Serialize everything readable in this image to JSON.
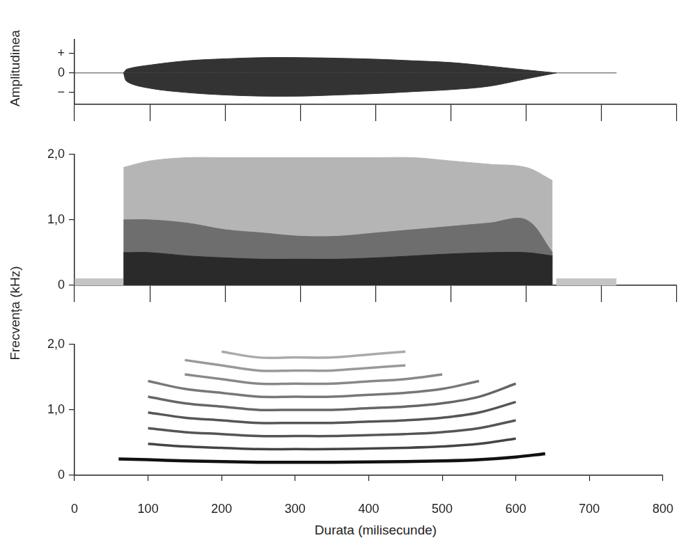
{
  "chart_data": [
    {
      "type": "area",
      "ylabel": "Amplitudinea",
      "xlim": [
        0,
        800
      ],
      "xticks": [
        0,
        100,
        200,
        300,
        400,
        500,
        600,
        700,
        800
      ],
      "ylim": [
        -1.6,
        1.7
      ],
      "yticks": [
        {
          "value": -1,
          "label": "−"
        },
        0,
        {
          "value": 1,
          "label": "+"
        }
      ],
      "tick_labels": "y",
      "grid": false,
      "series": [
        {
          "color": "#333333",
          "x": [
            65,
            70,
            100,
            150,
            200,
            250,
            300,
            350,
            400,
            450,
            500,
            550,
            600,
            640
          ],
          "values": [
            0,
            0.2,
            0.4,
            0.62,
            0.72,
            0.78,
            0.78,
            0.75,
            0.7,
            0.62,
            0.53,
            0.35,
            0.15,
            0
          ]
        },
        {
          "color": "#333333",
          "x": [
            65,
            70,
            100,
            150,
            200,
            250,
            300,
            350,
            400,
            450,
            500,
            550,
            600,
            640
          ],
          "values": [
            0,
            -0.45,
            -0.78,
            -1.0,
            -1.12,
            -1.18,
            -1.18,
            -1.12,
            -1.05,
            -0.95,
            -0.85,
            -0.68,
            -0.3,
            0
          ]
        },
        {
          "color": "#444444",
          "x": [
            0,
            720
          ],
          "values": [
            0,
            0
          ]
        }
      ]
    },
    {
      "type": "area",
      "ylabel": "Frecvența (kHz)",
      "xlim": [
        0,
        800
      ],
      "xticks": [
        0,
        100,
        200,
        300,
        400,
        500,
        600,
        700,
        800
      ],
      "ylim": [
        0,
        2
      ],
      "yticks": [
        0,
        {
          "value": 1,
          "label": "1,0"
        },
        {
          "value": 2,
          "label": "2,0"
        }
      ],
      "tick_labels": "y",
      "grid": false,
      "series": [
        {
          "color": "#2a2a2a",
          "x": [
            65,
            100,
            150,
            200,
            250,
            300,
            350,
            400,
            450,
            500,
            550,
            600,
            635
          ],
          "values": [
            0.5,
            0.5,
            0.45,
            0.42,
            0.4,
            0.4,
            0.4,
            0.42,
            0.45,
            0.48,
            0.5,
            0.5,
            0.45
          ]
        },
        {
          "color": "#6e6e6e",
          "x": [
            65,
            100,
            150,
            200,
            250,
            300,
            350,
            400,
            450,
            500,
            550,
            600,
            635
          ],
          "values": [
            1.0,
            1.0,
            0.95,
            0.85,
            0.8,
            0.75,
            0.75,
            0.8,
            0.85,
            0.9,
            0.95,
            1.0,
            0.5
          ]
        },
        {
          "color": "#b5b5b5",
          "x": [
            65,
            100,
            150,
            200,
            250,
            300,
            350,
            400,
            450,
            500,
            550,
            600,
            635
          ],
          "values": [
            1.8,
            1.9,
            1.95,
            1.95,
            1.95,
            1.95,
            1.95,
            1.95,
            1.95,
            1.9,
            1.85,
            1.8,
            1.6
          ]
        },
        {
          "color": "#c4c4c4",
          "x": [
            0,
            65
          ],
          "values": [
            0.1,
            0.1
          ]
        },
        {
          "color": "#c4c4c4",
          "x": [
            640,
            720
          ],
          "values": [
            0.1,
            0.1
          ]
        }
      ]
    },
    {
      "type": "line",
      "xlabel": "Durata (milisecunde)",
      "xlim": [
        0,
        800
      ],
      "xticks": [
        0,
        100,
        200,
        300,
        400,
        500,
        600,
        700,
        800
      ],
      "ylim": [
        0,
        2
      ],
      "yticks": [
        0,
        {
          "value": 1,
          "label": "1,0"
        },
        {
          "value": 2,
          "label": "2,0"
        }
      ],
      "grid": false,
      "x": [
        60,
        100,
        150,
        200,
        250,
        300,
        350,
        400,
        450,
        500,
        550,
        600,
        640
      ],
      "series": [
        {
          "color": "#111111",
          "values": [
            0.25,
            0.24,
            0.22,
            0.21,
            0.2,
            0.2,
            0.2,
            0.205,
            0.21,
            0.22,
            0.24,
            0.28,
            0.33
          ]
        },
        {
          "color": "#444444",
          "values": [
            null,
            0.48,
            0.44,
            0.42,
            0.4,
            0.4,
            0.4,
            0.41,
            0.42,
            0.44,
            0.48,
            0.56,
            null
          ]
        },
        {
          "color": "#555555",
          "values": [
            null,
            0.72,
            0.66,
            0.63,
            0.6,
            0.6,
            0.6,
            0.615,
            0.63,
            0.66,
            0.72,
            0.84,
            null
          ]
        },
        {
          "color": "#555555",
          "values": [
            null,
            0.96,
            0.88,
            0.84,
            0.8,
            0.8,
            0.8,
            0.82,
            0.84,
            0.88,
            0.96,
            1.12,
            null
          ]
        },
        {
          "color": "#666666",
          "values": [
            null,
            1.2,
            1.1,
            1.05,
            1.0,
            1.0,
            1.0,
            1.025,
            1.05,
            1.1,
            1.2,
            1.4,
            null
          ]
        },
        {
          "color": "#777777",
          "values": [
            null,
            1.44,
            1.32,
            1.26,
            1.2,
            1.2,
            1.2,
            1.23,
            1.26,
            1.32,
            1.44,
            null,
            null
          ]
        },
        {
          "color": "#888888",
          "values": [
            null,
            null,
            1.54,
            1.47,
            1.4,
            1.4,
            1.4,
            1.435,
            1.47,
            1.54,
            null,
            null,
            null
          ]
        },
        {
          "color": "#999999",
          "values": [
            null,
            null,
            1.76,
            1.68,
            1.6,
            1.6,
            1.6,
            1.64,
            1.68,
            null,
            null,
            null,
            null
          ]
        },
        {
          "color": "#aaaaaa",
          "values": [
            null,
            null,
            null,
            1.89,
            1.8,
            1.8,
            1.8,
            1.845,
            1.89,
            null,
            null,
            null,
            null
          ]
        }
      ]
    }
  ]
}
